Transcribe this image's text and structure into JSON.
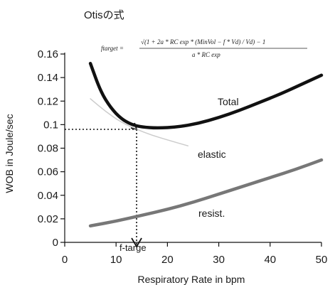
{
  "chart_data": {
    "type": "line",
    "title": "Otisの式",
    "formula": {
      "lhs": "ftarget =",
      "numerator": "√(1 + 2a * RC exp * (MinVol − f * Vd) / Vd) − 1",
      "denominator": "a * RC exp"
    },
    "xlabel": "Respiratory Rate in bpm",
    "ylabel": "WOB in Joule/sec",
    "xlim": [
      0,
      50
    ],
    "ylim": [
      0,
      0.16
    ],
    "x_ticks": [
      "0",
      "10",
      "20",
      "30",
      "40",
      "50"
    ],
    "y_ticks": [
      "0",
      "0.02",
      "0.04",
      "0.06",
      "0.08",
      "0.1",
      "0.12",
      "0.14",
      "0.16"
    ],
    "series": [
      {
        "name": "Total",
        "color": "#111111",
        "x": [
          5,
          7,
          9,
          11,
          13,
          15,
          18,
          22,
          26,
          30,
          34,
          38,
          42,
          46,
          50
        ],
        "y": [
          0.152,
          0.128,
          0.114,
          0.105,
          0.1,
          0.098,
          0.097,
          0.098,
          0.101,
          0.106,
          0.112,
          0.119,
          0.126,
          0.134,
          0.142
        ]
      },
      {
        "name": "elastic",
        "color": "#aaaaaa",
        "x": [
          5,
          8,
          11,
          14,
          17,
          20,
          24
        ],
        "y": [
          0.122,
          0.111,
          0.102,
          0.096,
          0.091,
          0.087,
          0.082
        ]
      },
      {
        "name": "resist.",
        "color": "#777777",
        "x": [
          5,
          10,
          15,
          20,
          25,
          30,
          35,
          40,
          45,
          50
        ],
        "y": [
          0.014,
          0.018,
          0.023,
          0.028,
          0.034,
          0.041,
          0.048,
          0.055,
          0.062,
          0.07
        ]
      }
    ],
    "annotations": {
      "target_label": "f-targe",
      "target_x": 14,
      "target_y": 0.096
    },
    "grid": false,
    "legend": "inline labels"
  }
}
